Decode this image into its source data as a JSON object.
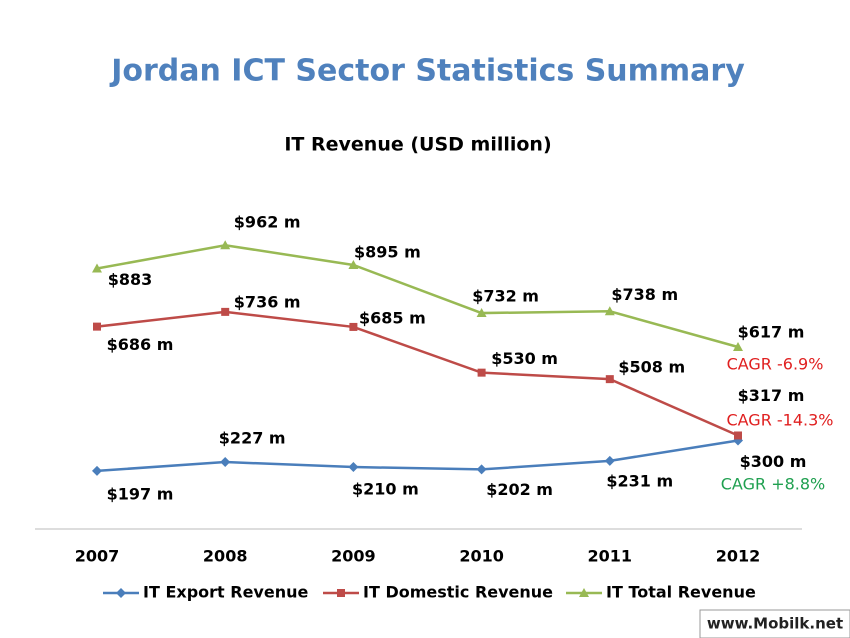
{
  "slide_title": "Jordan ICT Sector Statistics Summary",
  "watermark": "www.Mobilk.net",
  "chart_data": {
    "type": "line",
    "title": "IT Revenue (USD million)",
    "categories": [
      "2007",
      "2008",
      "2009",
      "2010",
      "2011",
      "2012"
    ],
    "ylim": [
      0,
      1100
    ],
    "legend": "bottom",
    "series": [
      {
        "name": "IT Export Revenue",
        "color": "#4a7ebb",
        "marker": "diamond",
        "values": [
          197,
          227,
          210,
          202,
          231,
          300
        ],
        "value_labels": [
          "$197 m",
          "$227 m",
          "$210 m",
          "$202 m",
          "$231 m",
          "$300 m"
        ]
      },
      {
        "name": "IT Domestic Revenue",
        "color": "#be4b48",
        "marker": "square",
        "values": [
          686,
          736,
          685,
          530,
          508,
          317
        ],
        "value_labels": [
          "$686 m",
          "$736 m",
          "$685 m",
          "$530 m",
          "$508 m",
          "$317 m"
        ]
      },
      {
        "name": "IT Total Revenue",
        "color": "#98b954",
        "marker": "triangle",
        "values": [
          883,
          962,
          895,
          732,
          738,
          617
        ],
        "value_labels": [
          "$883",
          "$962 m",
          "$895 m",
          "$732 m",
          "$738 m",
          "$617 m"
        ]
      }
    ],
    "annotations": [
      {
        "text": "CAGR -6.9%",
        "color": "#e02020"
      },
      {
        "text": "CAGR -14.3%",
        "color": "#e02020"
      },
      {
        "text": "CAGR +8.8%",
        "color": "#20a050"
      }
    ]
  }
}
